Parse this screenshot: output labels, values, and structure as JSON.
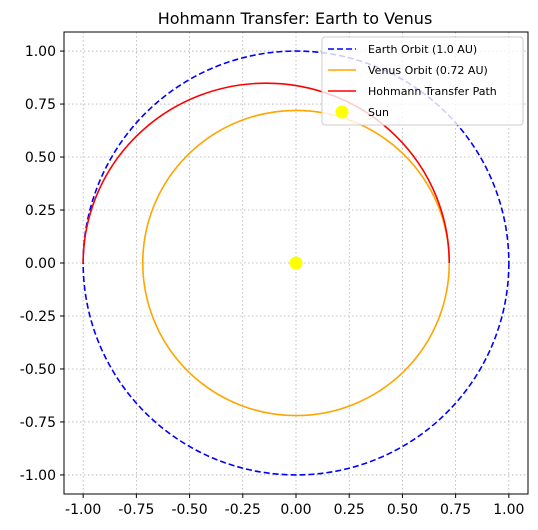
{
  "chart_data": {
    "type": "line",
    "title": "Hohmann Transfer: Earth to Venus",
    "xlabel": "",
    "ylabel": "",
    "xlim": [
      -1.09,
      1.09
    ],
    "ylim": [
      -1.09,
      1.09
    ],
    "grid": true,
    "legend_position": "top-right",
    "xticks": [
      "-1.00",
      "-0.75",
      "-0.50",
      "-0.25",
      "0.00",
      "0.25",
      "0.50",
      "0.75",
      "1.00"
    ],
    "yticks": [
      "1.00",
      "0.75",
      "0.50",
      "0.25",
      "0.00",
      "-0.25",
      "-0.50",
      "-0.75",
      "-1.00"
    ],
    "series": [
      {
        "name": "Earth Orbit (1.0 AU)",
        "kind": "circle",
        "radius": 1.0,
        "color": "#0000ff",
        "style": "dashed"
      },
      {
        "name": "Venus Orbit (0.72 AU)",
        "kind": "circle",
        "radius": 0.72,
        "color": "#ffa500",
        "style": "solid"
      },
      {
        "name": "Hohmann Transfer Path",
        "kind": "half-ellipse",
        "center_x": -0.14,
        "semi_major": 0.86,
        "semi_minor": 0.8485,
        "color": "#ff0000",
        "style": "solid"
      },
      {
        "name": "Sun",
        "kind": "point",
        "x": 0.0,
        "y": 0.0,
        "color": "#ffff00"
      }
    ]
  }
}
